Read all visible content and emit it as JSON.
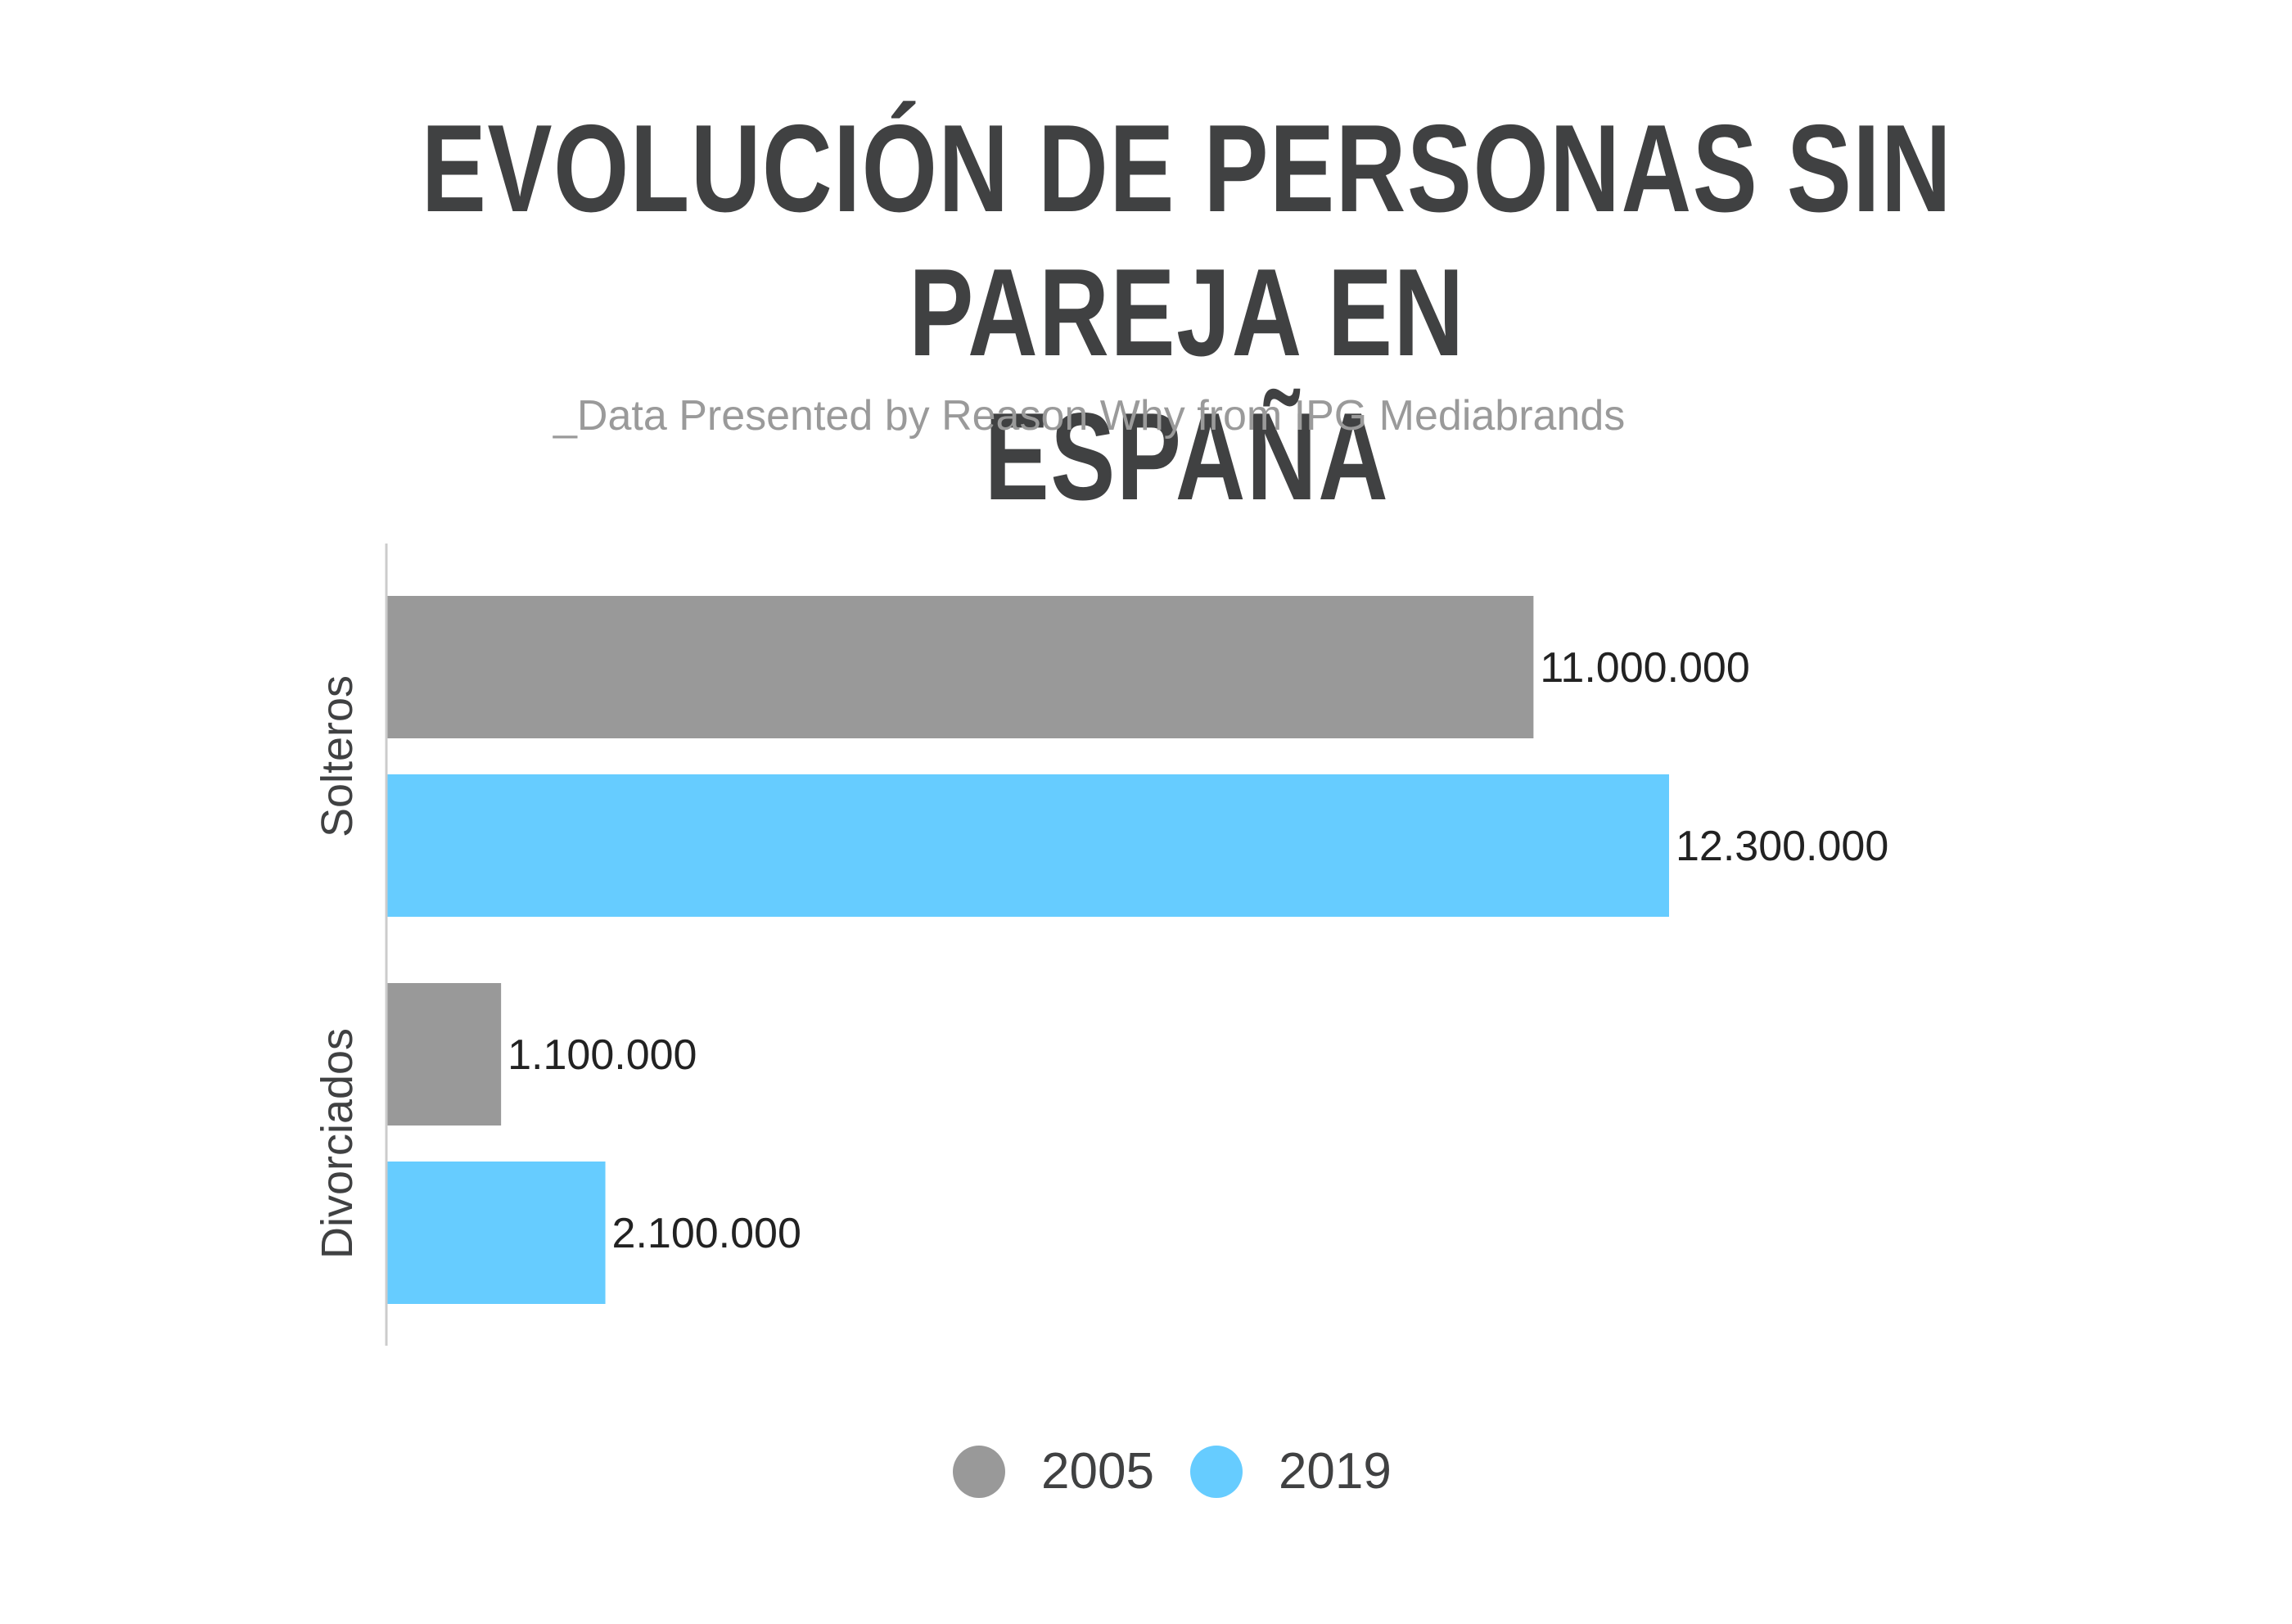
{
  "title": "EVOLUCIÓN DE PERSONAS SIN PAREJA EN ESPAÑA",
  "subtitle": "_Data Presented by Reason Why from IPG Mediabrands",
  "colors": {
    "series_2005": "#999999",
    "series_2019": "#66CCFF",
    "text": "#404142",
    "axis": "#cccccc"
  },
  "chart_data": {
    "type": "bar",
    "orientation": "horizontal",
    "categories": [
      "Solteros",
      "Divorciados"
    ],
    "series": [
      {
        "name": "2005",
        "values": [
          11000000,
          1100000
        ],
        "labels": [
          "11.000.000",
          "1.100.000"
        ],
        "color": "#999999"
      },
      {
        "name": "2019",
        "values": [
          12300000,
          2100000
        ],
        "labels": [
          "12.300.000",
          "2.100.000"
        ],
        "color": "#66CCFF"
      }
    ],
    "legend_position": "bottom",
    "grid": false
  }
}
